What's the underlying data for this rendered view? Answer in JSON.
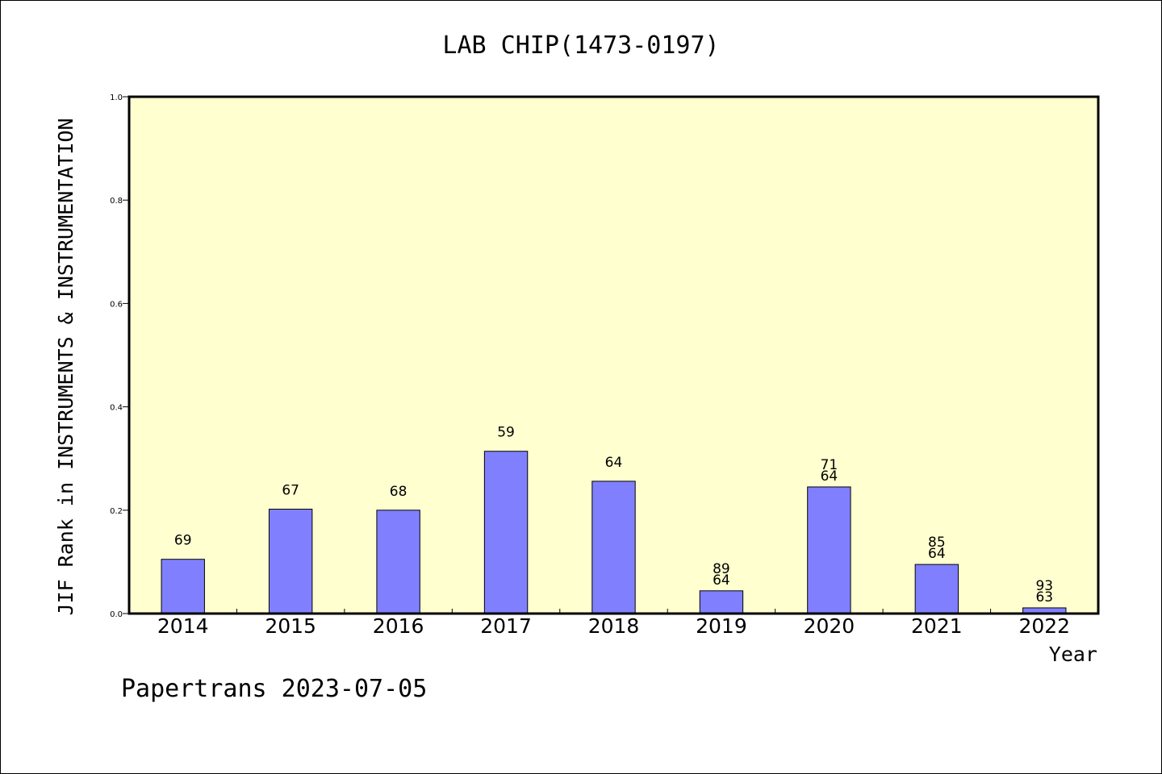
{
  "chart_data": {
    "type": "bar",
    "title": "LAB CHIP(1473-0197)",
    "xlabel": "Year",
    "ylabel": "JIF Rank in INSTRUMENTS & INSTRUMENTATION",
    "ylim": [
      0.0,
      1.0
    ],
    "yticks": [
      "0.0",
      "0.2",
      "0.4",
      "0.6",
      "0.8",
      "1.0"
    ],
    "categories": [
      "2014",
      "2015",
      "2016",
      "2017",
      "2018",
      "2019",
      "2020",
      "2021",
      "2022"
    ],
    "values": [
      0.105,
      0.202,
      0.2,
      0.314,
      0.256,
      0.044,
      0.245,
      0.095,
      0.011
    ],
    "bar_labels": [
      [
        "69"
      ],
      [
        "67"
      ],
      [
        "68"
      ],
      [
        "59"
      ],
      [
        "64"
      ],
      [
        "89",
        "64"
      ],
      [
        "71",
        "64"
      ],
      [
        "85",
        "64"
      ],
      [
        "93",
        "63"
      ]
    ],
    "grid": false,
    "colors": {
      "bar": "#8080ff",
      "plot_bg": "#ffffd0"
    }
  },
  "footer": "Papertrans 2023-07-05"
}
